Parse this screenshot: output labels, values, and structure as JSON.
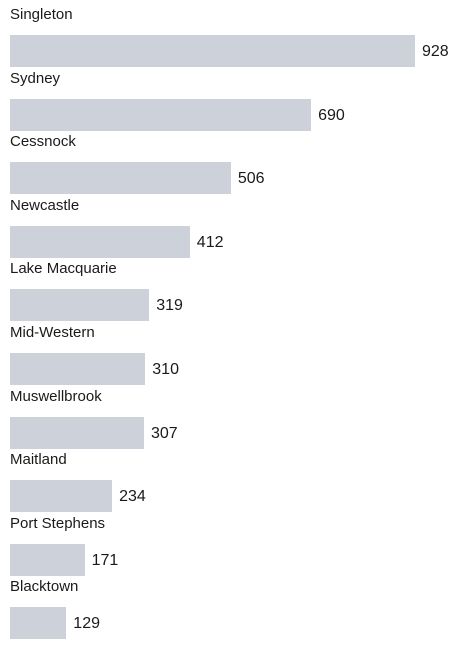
{
  "chart_data": {
    "type": "bar",
    "orientation": "horizontal",
    "title": "",
    "xlabel": "",
    "ylabel": "",
    "grid": false,
    "legend": "none",
    "bar_color": "#cdd2da",
    "xlim": [
      0,
      928
    ],
    "categories": [
      "Singleton",
      "Sydney",
      "Cessnock",
      "Newcastle",
      "Lake Macquarie",
      "Mid-Western",
      "Muswellbrook",
      "Maitland",
      "Port Stephens",
      "Blacktown"
    ],
    "values": [
      928,
      690,
      506,
      412,
      319,
      310,
      307,
      234,
      171,
      129
    ]
  }
}
